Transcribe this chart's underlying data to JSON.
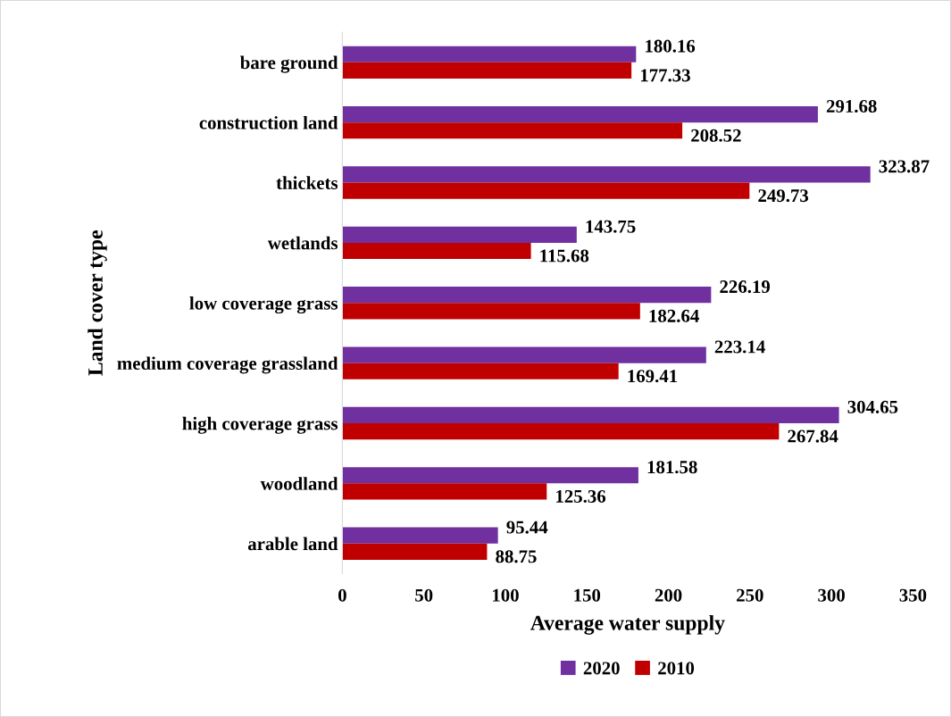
{
  "chart_data": {
    "type": "bar",
    "orientation": "horizontal",
    "xlabel": "Average water supply",
    "ylabel": "Land cover type",
    "categories": [
      "bare ground",
      "construction land",
      "thickets",
      "wetlands",
      "low coverage grass",
      "medium coverage grassland",
      "high coverage grass",
      "woodland",
      "arable land"
    ],
    "series": [
      {
        "name": "2020",
        "color": "#7030a0",
        "values": [
          180.16,
          291.68,
          323.87,
          143.75,
          226.19,
          223.14,
          304.65,
          181.58,
          95.44
        ]
      },
      {
        "name": "2010",
        "color": "#c00000",
        "values": [
          177.33,
          208.52,
          249.73,
          115.68,
          182.64,
          169.41,
          267.84,
          125.36,
          88.75
        ]
      }
    ],
    "xlim": [
      0,
      350
    ],
    "xticks": [
      0,
      50,
      100,
      150,
      200,
      250,
      300,
      350
    ],
    "data_labels": true,
    "grid": false,
    "legend": "bottom"
  }
}
